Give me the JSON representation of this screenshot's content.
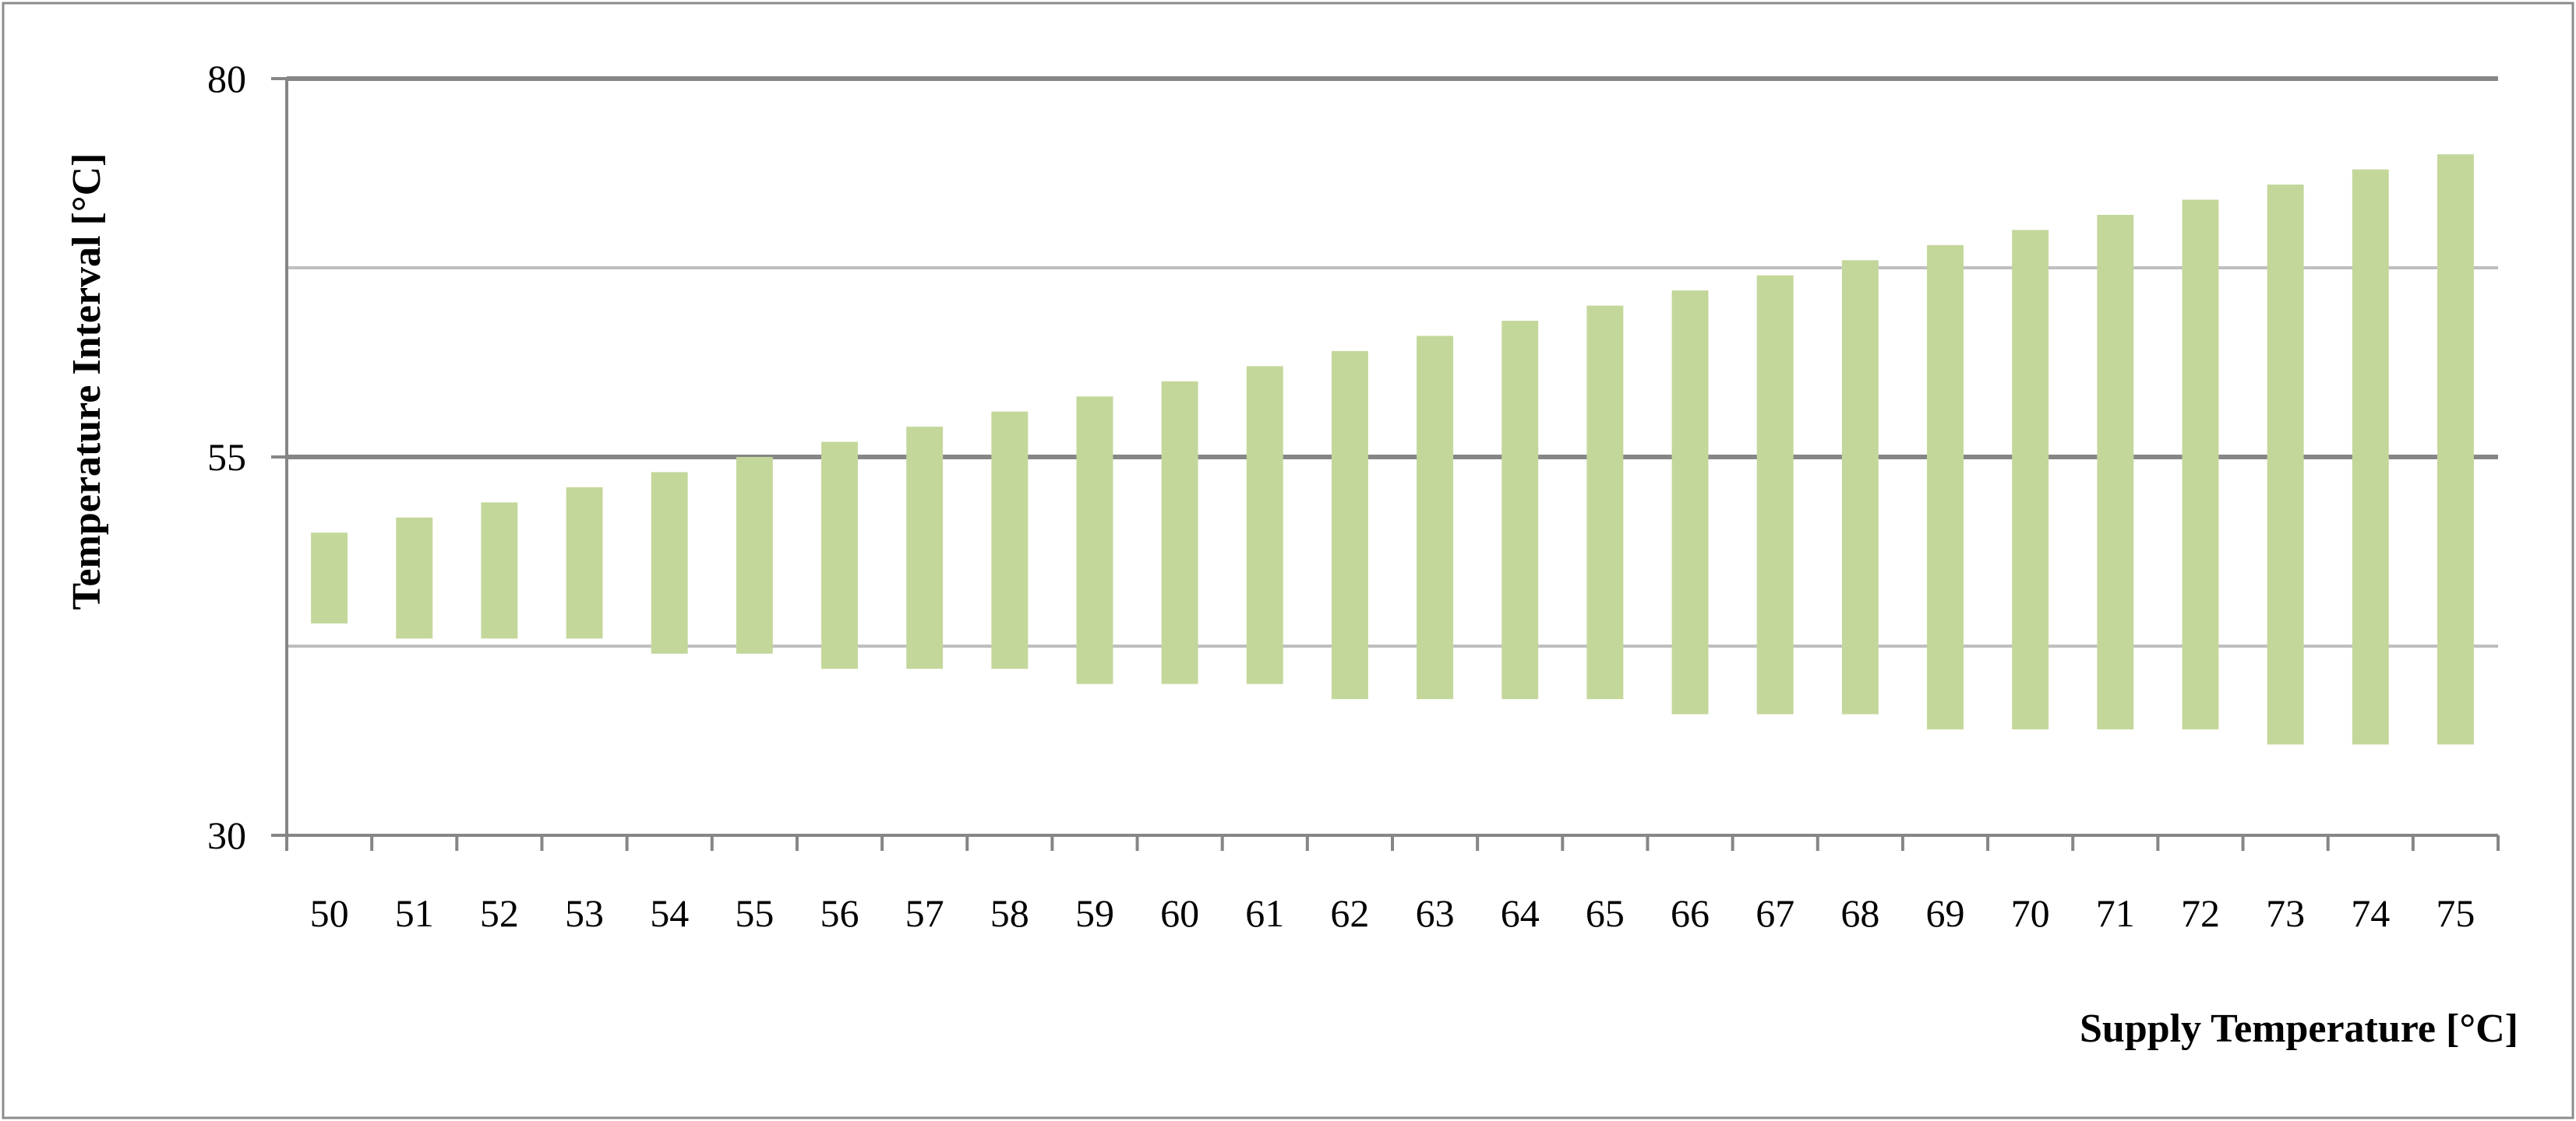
{
  "chart_data": {
    "type": "bar",
    "subtype": "floating-range",
    "xlabel": "Supply Temperature [°C]",
    "ylabel": "Temperature Interval [°C]",
    "ylim": [
      30,
      80
    ],
    "yticks": [
      30,
      55,
      80
    ],
    "minor_gridlines": [
      42.5,
      67.5
    ],
    "grid": true,
    "legend": "none",
    "categories": [
      "50",
      "51",
      "52",
      "53",
      "54",
      "55",
      "56",
      "57",
      "58",
      "59",
      "60",
      "61",
      "62",
      "63",
      "64",
      "65",
      "66",
      "67",
      "68",
      "69",
      "70",
      "71",
      "72",
      "73",
      "74",
      "75"
    ],
    "series": [
      {
        "color": "#c4d79b",
        "low": [
          44,
          43,
          43,
          43,
          42,
          42,
          41,
          41,
          41,
          40,
          40,
          40,
          39,
          39,
          39,
          39,
          38,
          38,
          38,
          37,
          37,
          37,
          37,
          36,
          36,
          36
        ],
        "high": [
          50,
          51,
          52,
          53,
          54,
          55,
          56,
          57,
          58,
          59,
          60,
          61,
          62,
          63,
          64,
          65,
          66,
          67,
          68,
          69,
          70,
          71,
          72,
          73,
          74,
          75
        ]
      }
    ]
  }
}
